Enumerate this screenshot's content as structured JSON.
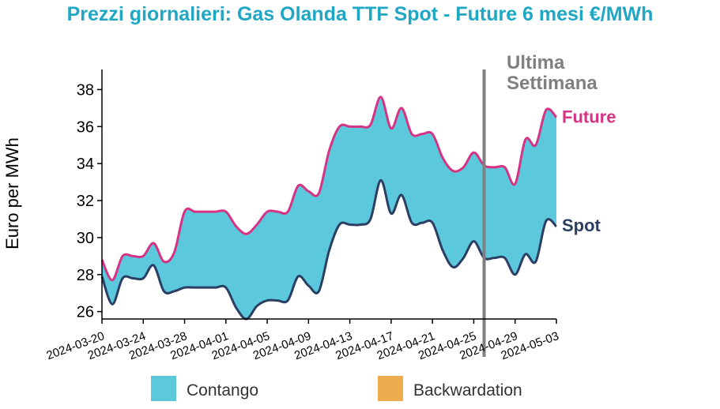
{
  "chart_data": {
    "type": "area",
    "title": "Prezzi giornalieri: Gas Olanda TTF Spot - Future 6 mesi €/MWh",
    "ylabel": "Euro per MWh",
    "xlabel": "",
    "ylim": [
      25.6,
      39
    ],
    "yticks": [
      26,
      28,
      30,
      32,
      34,
      36,
      38
    ],
    "x_start": "2024-03-20",
    "x_end": "2024-05-03",
    "xtick_labels": [
      "2024-03-20",
      "2024-03-24",
      "2024-03-28",
      "2024-04-01",
      "2024-04-05",
      "2024-04-09",
      "2024-04-13",
      "2024-04-17",
      "2024-04-21",
      "2024-04-25",
      "2024-04-29",
      "2024-05-03"
    ],
    "x": [
      "2024-03-20",
      "2024-03-21",
      "2024-03-22",
      "2024-03-23",
      "2024-03-24",
      "2024-03-25",
      "2024-03-26",
      "2024-03-27",
      "2024-03-28",
      "2024-03-29",
      "2024-03-30",
      "2024-03-31",
      "2024-04-01",
      "2024-04-02",
      "2024-04-03",
      "2024-04-04",
      "2024-04-05",
      "2024-04-06",
      "2024-04-07",
      "2024-04-08",
      "2024-04-09",
      "2024-04-10",
      "2024-04-11",
      "2024-04-12",
      "2024-04-13",
      "2024-04-14",
      "2024-04-15",
      "2024-04-16",
      "2024-04-17",
      "2024-04-18",
      "2024-04-19",
      "2024-04-20",
      "2024-04-21",
      "2024-04-22",
      "2024-04-23",
      "2024-04-24",
      "2024-04-25",
      "2024-04-26",
      "2024-04-27",
      "2024-04-28",
      "2024-04-29",
      "2024-04-30",
      "2024-05-01",
      "2024-05-02",
      "2024-05-03"
    ],
    "series": [
      {
        "name": "Future",
        "color": "#d63384",
        "values": [
          28.8,
          27.7,
          29.0,
          29.0,
          29.0,
          29.7,
          28.7,
          29.2,
          31.4,
          31.4,
          31.4,
          31.4,
          31.4,
          30.6,
          30.2,
          30.7,
          31.4,
          31.4,
          31.4,
          32.8,
          32.5,
          32.4,
          34.7,
          36.0,
          36.0,
          36.0,
          36.1,
          37.6,
          35.9,
          37.0,
          35.6,
          35.6,
          35.6,
          34.3,
          33.6,
          33.8,
          34.6,
          33.9,
          33.8,
          33.8,
          32.9,
          35.3,
          35.0,
          36.9,
          36.5
        ]
      },
      {
        "name": "Spot",
        "color": "#2b3e63",
        "values": [
          27.9,
          26.4,
          27.8,
          27.8,
          27.8,
          28.5,
          27.1,
          27.1,
          27.3,
          27.3,
          27.3,
          27.3,
          27.3,
          26.2,
          25.6,
          26.3,
          26.6,
          26.6,
          26.6,
          27.9,
          27.4,
          27.1,
          29.3,
          30.7,
          30.7,
          30.7,
          31.0,
          33.1,
          31.3,
          32.3,
          30.8,
          30.8,
          30.8,
          29.3,
          28.4,
          28.9,
          29.8,
          28.9,
          28.9,
          28.9,
          28.0,
          29.1,
          28.7,
          30.9,
          30.6
        ]
      }
    ],
    "fill_color": "#5bc8dc",
    "legend": [
      {
        "label": "Contango",
        "color": "#5bc8dc"
      },
      {
        "label": "Backwardation",
        "color": "#eeac4f"
      }
    ],
    "legend_position": "bottom",
    "marker": {
      "date": "2024-04-26",
      "label_line1": "Ultima",
      "label_line2": "Settimana",
      "color": "#808080"
    },
    "grid": false
  }
}
